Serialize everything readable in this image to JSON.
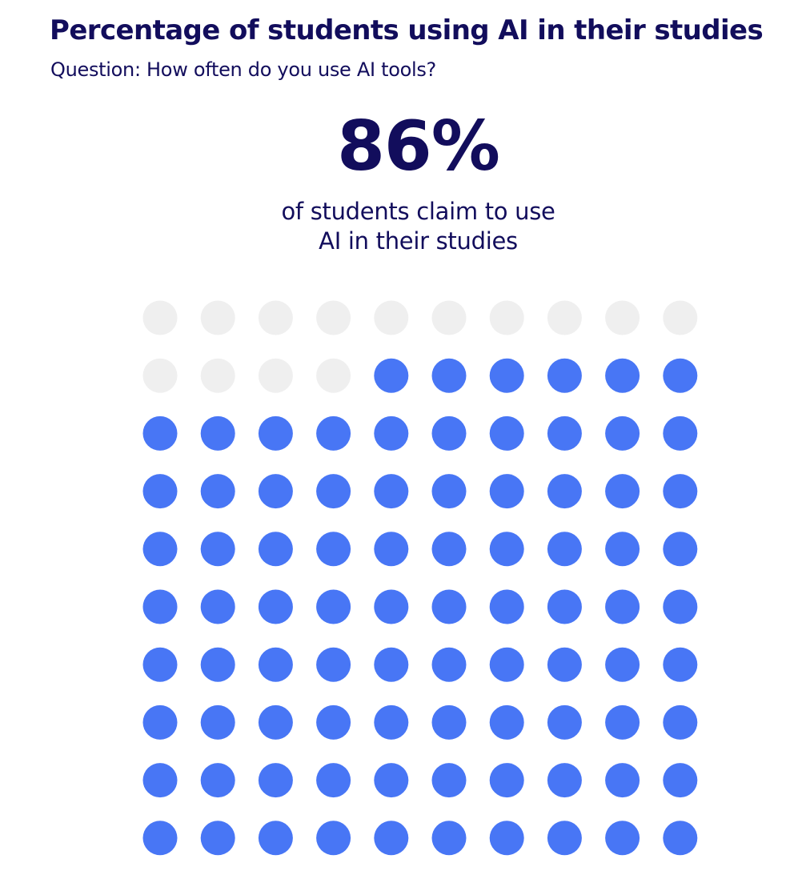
{
  "title": "Percentage of students using AI in their studies",
  "subtitle": "Question: How often do you use AI tools?",
  "headline_value": "86%",
  "caption_line1": "of students claim to use",
  "caption_line2": "AI in their studies",
  "colors": {
    "filled": "#4876f5",
    "empty": "#efefef",
    "text": "#120d5c"
  },
  "chart_data": {
    "type": "waffle",
    "rows": 10,
    "columns": 10,
    "filled_count": 86,
    "total": 100,
    "fill_order": "from bottom row upward, left to right within a row"
  }
}
